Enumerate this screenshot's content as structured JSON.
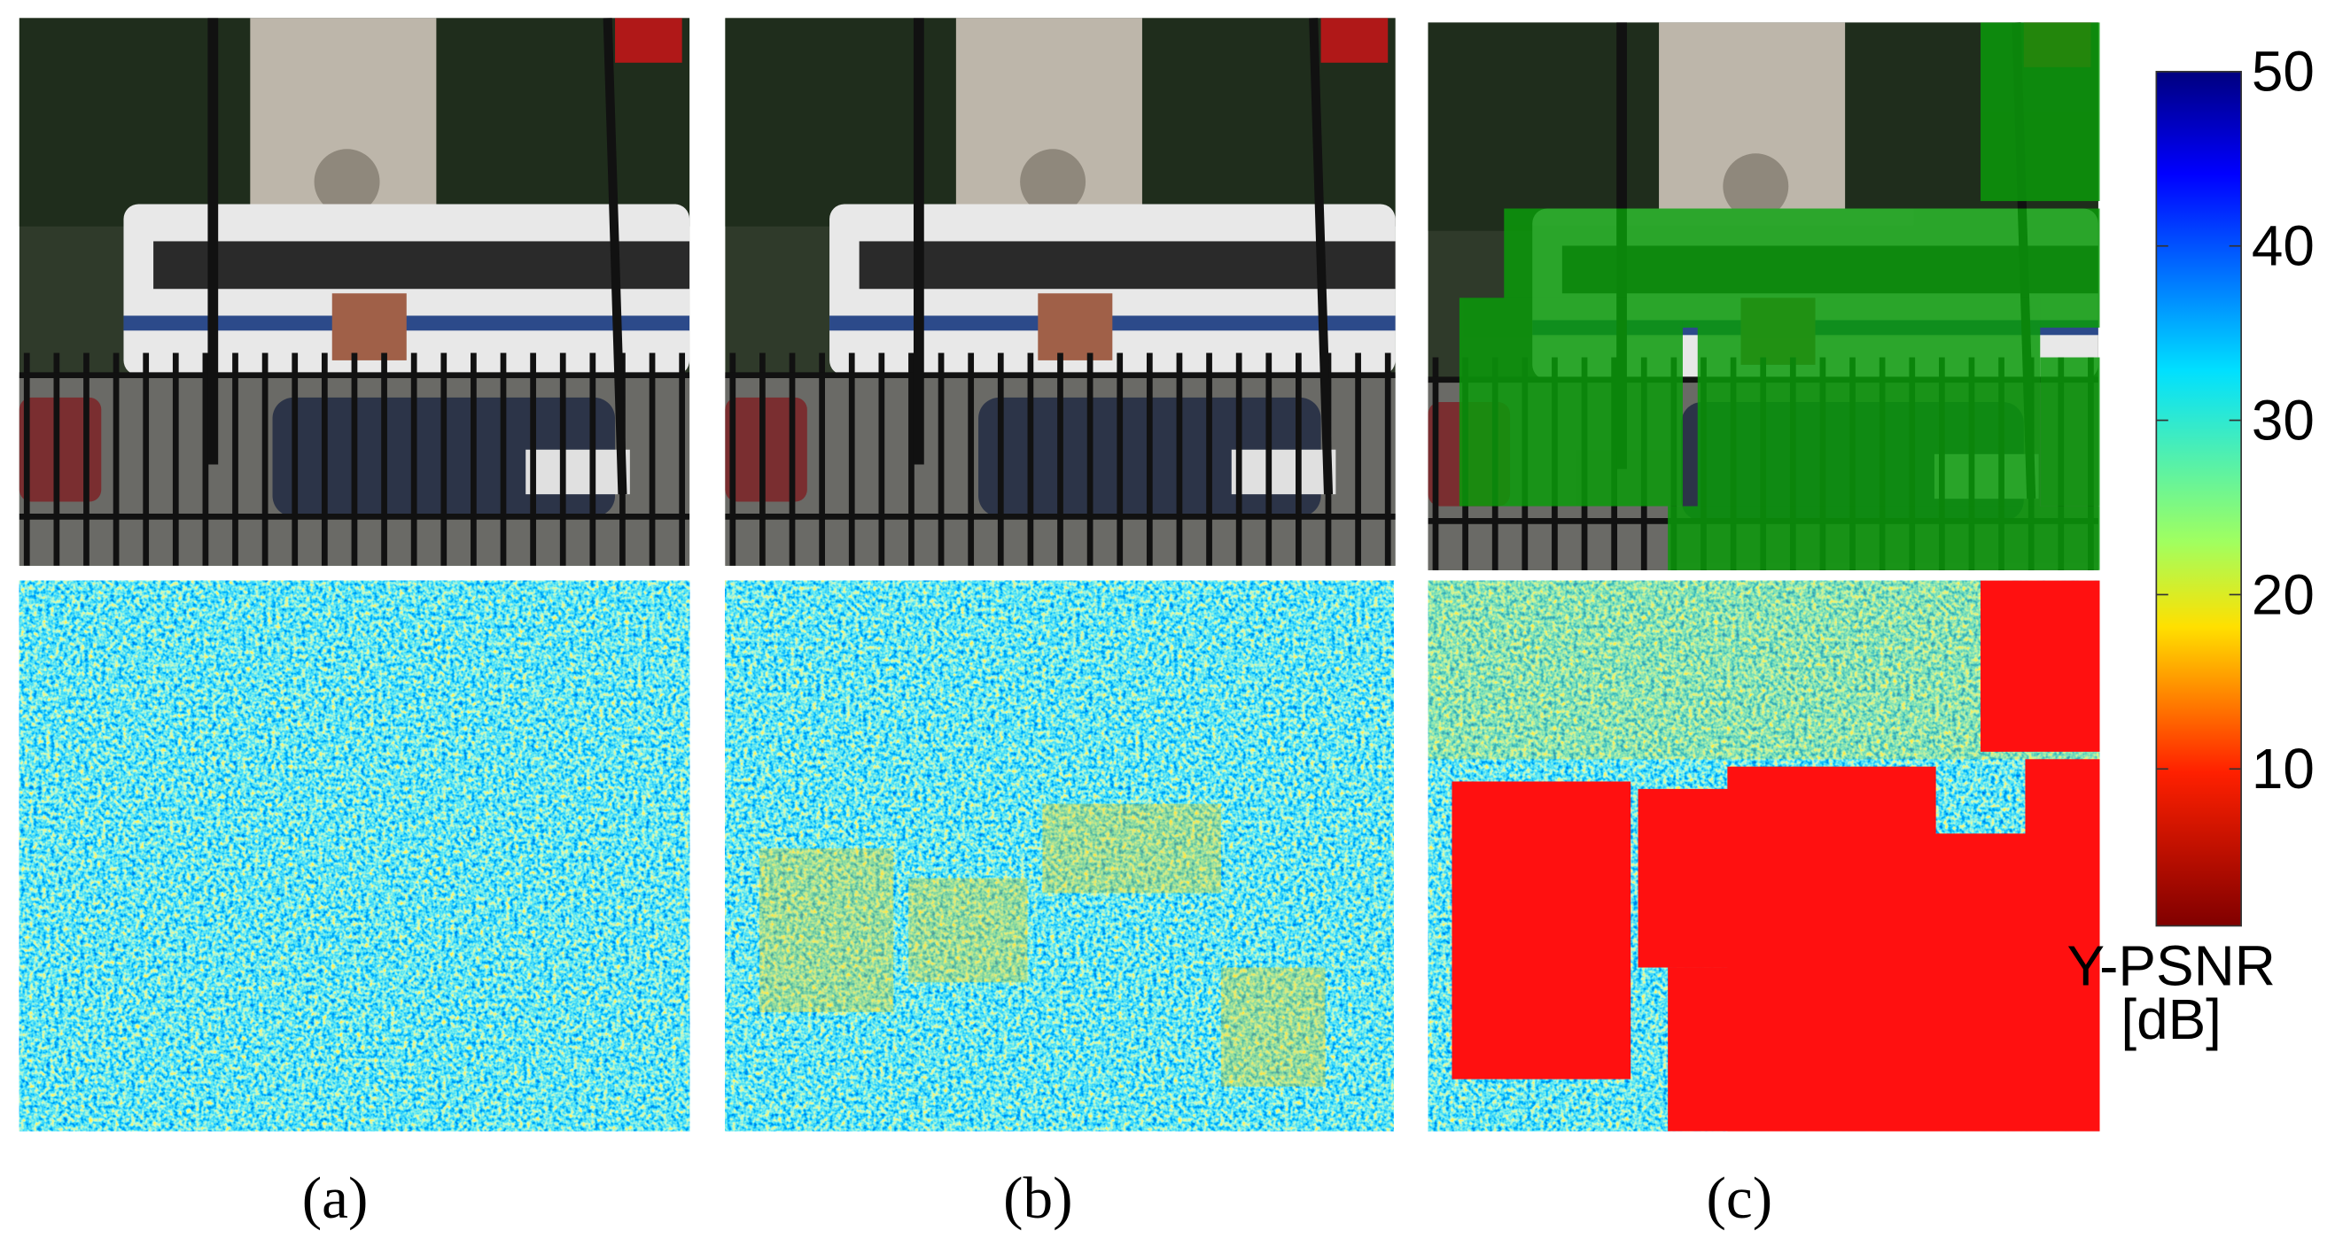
{
  "panels": [
    {
      "label": "(a)"
    },
    {
      "label": "(b)"
    },
    {
      "label": "(c)"
    }
  ],
  "colorbar": {
    "label_lines": [
      "Y-PSNR",
      "[dB]"
    ],
    "lim": [
      1,
      50
    ],
    "ticks": [
      10,
      20,
      30,
      40,
      50
    ]
  }
}
